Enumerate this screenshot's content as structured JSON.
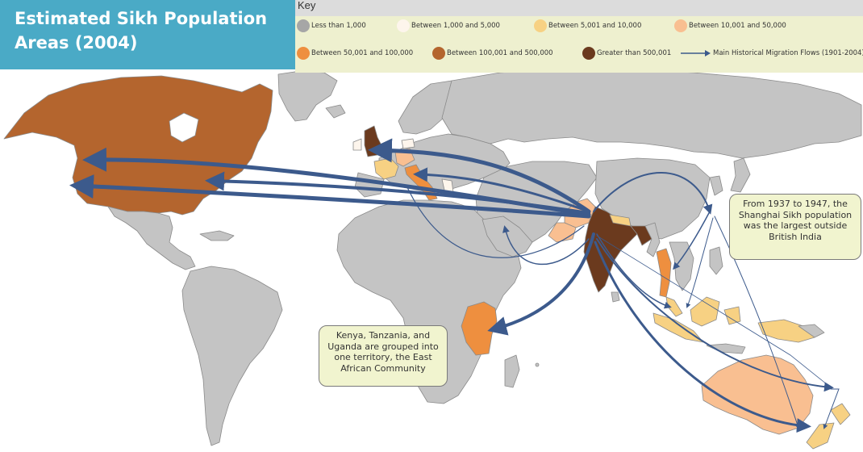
{
  "title_line1": "Estimated Sikh Population",
  "title_line2": "Areas (2004)",
  "key": {
    "title": "Key",
    "items": [
      {
        "label": "Less than 1,000",
        "color": "#a6a6a6"
      },
      {
        "label": "Between 1,000 and 5,000",
        "color": "#fdf5ec"
      },
      {
        "label": "Between 5,001 and 10,000",
        "color": "#f7d183"
      },
      {
        "label": "Between 10,001 and 50,000",
        "color": "#f9bf91"
      },
      {
        "label": "Between 50,001 and 100,000",
        "color": "#ee8f3f"
      },
      {
        "label": "Between 100,001 and 500,000",
        "color": "#b4652e"
      },
      {
        "label": "Greater than 500,001",
        "color": "#6b3a1e"
      },
      {
        "label": "Main Historical Migration Flows (1901-2004)",
        "color": "#3c5a8c"
      }
    ]
  },
  "callouts": {
    "shanghai": "From 1937 to 1947, the Shanghai Sikh population was the largest outside British India",
    "east_africa": "Kenya, Tanzania, and Uganda are grouped into one territory, the East African Community"
  },
  "colors": {
    "ocean": "#ffffff",
    "land_default": "#c4c4c4",
    "border": "#8a8a8a",
    "flow": "#3c5a8c",
    "title_bg": "#4aaac6"
  }
}
